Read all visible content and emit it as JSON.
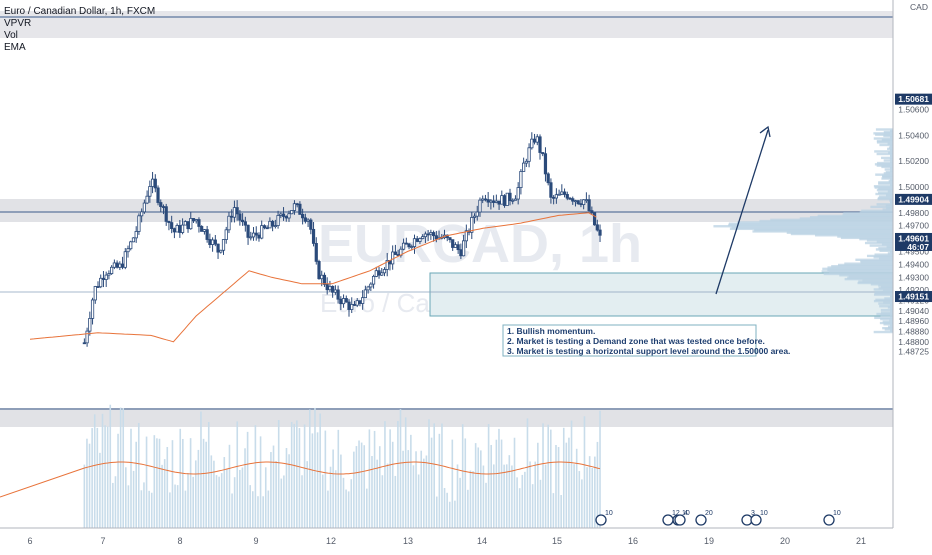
{
  "legend": {
    "title": "Euro / Canadian Dollar, 1h, FXCM",
    "indicators": [
      "VPVR",
      "Vol",
      "EMA"
    ]
  },
  "watermark": {
    "symbol": "EURCAD, 1h",
    "description": "Euro / Canadian Dollar"
  },
  "price_axis": {
    "currency": "CAD",
    "labels": [
      "1.50600",
      "1.50400",
      "1.50200",
      "1.50000",
      "1.49800",
      "1.49700",
      "1.49500",
      "1.49400",
      "1.49300",
      "1.49200",
      "1.49120",
      "1.49040",
      "1.48960",
      "1.48880",
      "1.48800",
      "1.48725"
    ],
    "tags": [
      {
        "value": "1.50681",
        "price": 1.50681
      },
      {
        "value": "1.49904",
        "price": 1.49904
      },
      {
        "value": "1.49601",
        "countdown": "46:07",
        "price": 1.49601
      },
      {
        "value": "1.49151",
        "price": 1.49151
      }
    ]
  },
  "time_axis": {
    "labels": [
      "6",
      "7",
      "8",
      "9",
      "12",
      "13",
      "14",
      "15",
      "16",
      "19",
      "20",
      "21"
    ]
  },
  "annotation": {
    "lines": [
      "1. Bullish momentum.",
      "2. Market is testing a Demand zone that was tested once before.",
      "3. Market is testing a horizontal support level around the 1.50000 area."
    ]
  },
  "event_markers": [
    "10",
    "10",
    "12",
    "4",
    "20",
    "3",
    "10",
    "10"
  ],
  "colors": {
    "candle": "#2b4a7a",
    "ema": "#e8733a",
    "volume": "#c8dcea",
    "vpvr": "#b9d2e3",
    "zone": "#e6e6ea",
    "demand_zone": "#e3eef1",
    "tag_bg": "#1e3a66",
    "price_line": "#2b4a7a"
  },
  "chart_data": {
    "type": "candlestick",
    "symbol": "EURCAD",
    "timeframe": "1h",
    "current_price": 1.49601,
    "resistance_zone": [
      1.49904,
      1.5
    ],
    "supply_zone_top": [
      1.506,
      1.50681
    ],
    "support_level": [
      1.4912,
      1.49151
    ],
    "demand_zone": [
      1.495,
      1.4964
    ],
    "close_path": [
      [
        6,
        1.4872
      ],
      [
        6.7,
        1.4873
      ],
      [
        6.85,
        1.492
      ],
      [
        7.0,
        1.4935
      ],
      [
        7.2,
        1.4938
      ],
      [
        7.4,
        1.4965
      ],
      [
        7.5,
        1.4985
      ],
      [
        7.6,
        1.5005
      ],
      [
        7.75,
        1.4985
      ],
      [
        7.9,
        1.4965
      ],
      [
        8.2,
        1.4975
      ],
      [
        8.5,
        1.495
      ],
      [
        8.7,
        1.4985
      ],
      [
        8.9,
        1.496
      ],
      [
        9.2,
        1.497
      ],
      [
        9.5,
        1.4985
      ],
      [
        9.7,
        1.4975
      ],
      [
        9.8,
        1.4935
      ],
      [
        10.0,
        1.4918
      ],
      [
        10.3,
        1.4905
      ],
      [
        10.6,
        1.4935
      ],
      [
        10.9,
        1.495
      ],
      [
        11.2,
        1.4965
      ],
      [
        11.5,
        1.496
      ],
      [
        11.7,
        1.495
      ],
      [
        11.8,
        1.4965
      ],
      [
        12.0,
        1.4995
      ],
      [
        12.15,
        1.499
      ],
      [
        12.3,
        1.499
      ],
      [
        12.45,
        1.4995
      ],
      [
        12.55,
        1.502
      ],
      [
        12.7,
        1.504
      ],
      [
        12.8,
        1.502
      ],
      [
        12.9,
        1.499
      ],
      [
        13.1,
        1.4995
      ],
      [
        13.25,
        1.499
      ],
      [
        13.35,
        1.499
      ],
      [
        13.45,
        1.4975
      ],
      [
        13.55,
        1.496
      ]
    ],
    "ema_path": [
      [
        6,
        1.4882
      ],
      [
        6.9,
        1.4887
      ],
      [
        7.6,
        1.4885
      ],
      [
        7.9,
        1.488
      ],
      [
        8.2,
        1.49
      ],
      [
        8.6,
        1.492
      ],
      [
        8.9,
        1.4935
      ],
      [
        9.2,
        1.493
      ],
      [
        9.6,
        1.4925
      ],
      [
        10.0,
        1.4925
      ],
      [
        10.5,
        1.4935
      ],
      [
        11.0,
        1.495
      ],
      [
        11.5,
        1.4962
      ],
      [
        12.0,
        1.4968
      ],
      [
        12.5,
        1.4972
      ],
      [
        13.0,
        1.4978
      ],
      [
        13.4,
        1.498
      ],
      [
        13.55,
        1.4975
      ]
    ],
    "volume_profile_peak_price": 1.497,
    "projection": {
      "from_price": 1.49601,
      "to_price": 1.5023
    }
  }
}
